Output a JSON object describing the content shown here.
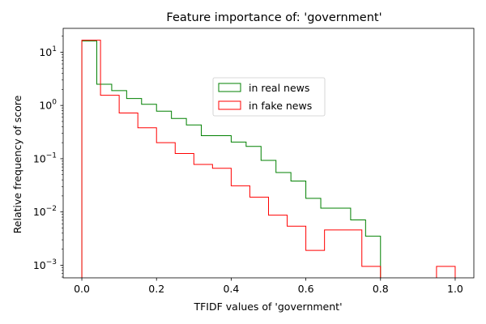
{
  "chart_data": {
    "type": "histogram-step",
    "title": "Feature importance of: 'government'",
    "xlabel": "TFIDF values of 'government'",
    "ylabel": "Relative frequency of score",
    "xlim": [
      -0.05,
      1.05
    ],
    "ylim": [
      0.00058,
      28
    ],
    "yscale": "log",
    "xticks": [
      {
        "value": 0.0,
        "label": "0.0"
      },
      {
        "value": 0.2,
        "label": "0.2"
      },
      {
        "value": 0.4,
        "label": "0.4"
      },
      {
        "value": 0.6,
        "label": "0.6"
      },
      {
        "value": 0.8,
        "label": "0.8"
      },
      {
        "value": 1.0,
        "label": "1.0"
      }
    ],
    "yticks": [
      {
        "value": 10,
        "base": "10",
        "exp": "1"
      },
      {
        "value": 1,
        "base": "10",
        "exp": "0"
      },
      {
        "value": 0.1,
        "base": "10",
        "exp": "−1"
      },
      {
        "value": 0.01,
        "base": "10",
        "exp": "−2"
      },
      {
        "value": 0.001,
        "base": "10",
        "exp": "−3"
      }
    ],
    "legend_position": "upper-center",
    "series": [
      {
        "name": "in real news",
        "color": "#008000",
        "edges": [
          0.0,
          0.04,
          0.08,
          0.12,
          0.16,
          0.2,
          0.24,
          0.28,
          0.32,
          0.36,
          0.4,
          0.44,
          0.48,
          0.52,
          0.56,
          0.6,
          0.64,
          0.68,
          0.72,
          0.76,
          0.8
        ],
        "values": [
          16.2,
          2.5,
          1.9,
          1.35,
          1.05,
          0.78,
          0.57,
          0.43,
          0.27,
          0.27,
          0.205,
          0.17,
          0.093,
          0.055,
          0.038,
          0.018,
          0.0118,
          0.0118,
          0.0071,
          0.0035
        ]
      },
      {
        "name": "in fake news",
        "color": "#ff0000",
        "edges": [
          0.0,
          0.05,
          0.1,
          0.15,
          0.2,
          0.25,
          0.3,
          0.35,
          0.4,
          0.45,
          0.5,
          0.55,
          0.6,
          0.65,
          0.7,
          0.75,
          0.8,
          0.85,
          0.9,
          0.95,
          1.0
        ],
        "values": [
          16.8,
          1.55,
          0.72,
          0.38,
          0.2,
          0.125,
          0.078,
          0.066,
          0.031,
          0.019,
          0.0087,
          0.0054,
          0.0019,
          0.0046,
          0.0046,
          0.00095,
          0,
          0,
          0,
          0.00095
        ]
      }
    ]
  }
}
